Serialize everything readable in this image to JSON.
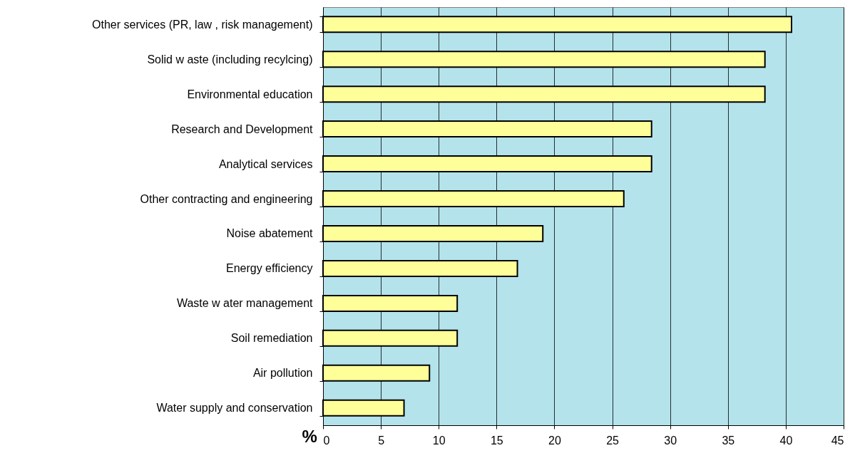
{
  "chart_data": {
    "type": "bar",
    "orientation": "horizontal",
    "xlabel": "%",
    "categories": [
      "Other services (PR, law , risk management)",
      "Solid w aste (including recylcing)",
      "Environmental education",
      "Research and Development",
      "Analytical services",
      "Other contracting and engineering",
      "Noise abatement",
      "Energy efficiency",
      "Waste w ater management",
      "Soil remediation",
      "Air pollution",
      "Water supply and conservation"
    ],
    "values": [
      40.5,
      38.2,
      38.2,
      28.4,
      28.4,
      26.0,
      19.0,
      16.8,
      11.6,
      11.6,
      9.2,
      7.0
    ],
    "color": "#ffff99",
    "xlim": [
      0,
      45
    ],
    "xticks": [
      0,
      5,
      10,
      15,
      20,
      25,
      30,
      35,
      40,
      45
    ],
    "grid": "x"
  }
}
